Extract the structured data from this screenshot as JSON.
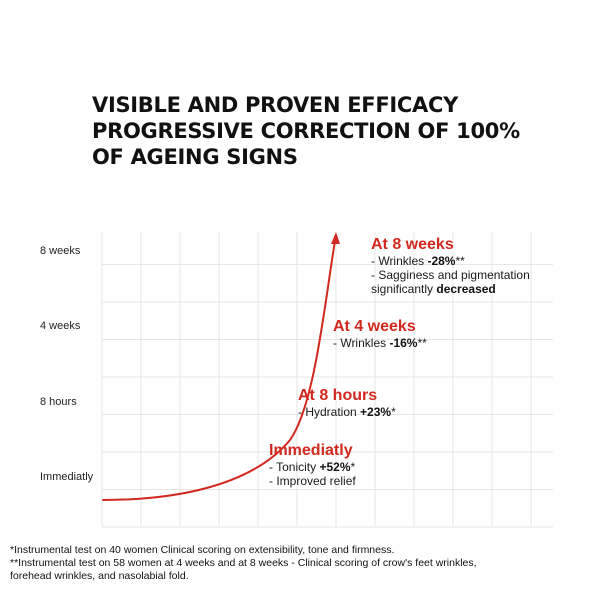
{
  "title_lines": [
    "VISIBLE AND PROVEN EFFICACY",
    "PROGRESSIVE CORRECTION OF 100%",
    "OF AGEING SIGNS"
  ],
  "chart_data": {
    "type": "line",
    "title": "VISIBLE AND PROVEN EFFICACY PROGRESSIVE CORRECTION OF 100% OF AGEING SIGNS",
    "xlabel": "",
    "ylabel": "",
    "grid": true,
    "y_categories": [
      "Immediatly",
      "8 hours",
      "4 weeks",
      "8 weeks"
    ],
    "curve": {
      "color": "#d1291f",
      "style": "exponential rising arrow"
    },
    "annotations": [
      {
        "heading": "Immediatly",
        "lines": [
          {
            "pre": "- Tonicity ",
            "bold": "+52%",
            "post": "*"
          },
          {
            "pre": "- Improved relief",
            "bold": "",
            "post": ""
          }
        ]
      },
      {
        "heading": "At 8 hours",
        "lines": [
          {
            "pre": "- Hydration ",
            "bold": "+23%",
            "post": "*"
          }
        ]
      },
      {
        "heading": "At 4 weeks",
        "lines": [
          {
            "pre": "- Wrinkles ",
            "bold": "-16%",
            "post": "**"
          }
        ]
      },
      {
        "heading": "At 8 weeks",
        "lines": [
          {
            "pre": "- Wrinkles ",
            "bold": "-28%",
            "post": "**"
          },
          {
            "pre": "- Sagginess and pigmentation",
            "bold": "",
            "post": ""
          },
          {
            "pre": "significantly ",
            "bold": "decreased",
            "post": ""
          }
        ]
      }
    ]
  },
  "footnotes": [
    "*Instrumental test on 40 women Clinical scoring on extensibility, tone and firmness.",
    "**Instrumental test on 58 women at 4 weeks and at 8 weeks - Clinical scoring of crow's feet wrinkles,",
    "forehead wrinkles, and nasolabial fold."
  ],
  "colors": {
    "accent": "#d1291f",
    "grid": "#e6e6e6",
    "text": "#1a1a1a"
  }
}
